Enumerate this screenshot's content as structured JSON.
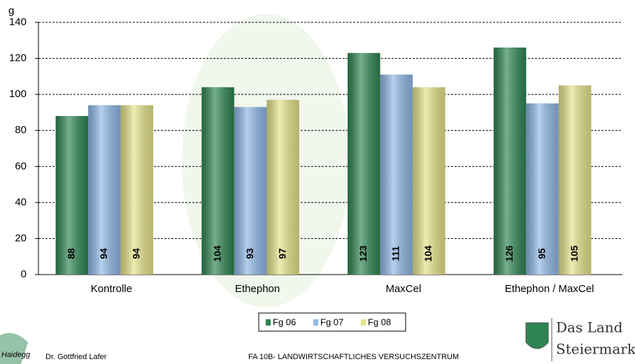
{
  "chart_data": {
    "type": "bar",
    "y_label": "g",
    "categories": [
      "Kontrolle",
      "Ethephon",
      "MaxCel",
      "Ethephon / MaxCel"
    ],
    "series": [
      {
        "name": "Fg 06",
        "color": "#2e8552",
        "values": [
          88,
          104,
          123,
          126
        ]
      },
      {
        "name": "Fg 07",
        "color": "#8fb8e6",
        "values": [
          94,
          93,
          111,
          95
        ]
      },
      {
        "name": "Fg 08",
        "color": "#e6e38a",
        "values": [
          94,
          97,
          104,
          105
        ]
      }
    ],
    "ylim": [
      0,
      140
    ],
    "yticks": [
      0,
      20,
      40,
      60,
      80,
      100,
      120,
      140
    ],
    "grid": true,
    "legend": "bottom"
  },
  "footer": {
    "author": "Dr. Gottfried Lafer",
    "institution": "FA 10B- LANDWIRTSCHAFTLICHES VERSUCHSZENTRUM",
    "left_logo": "Haidegg",
    "right_logo_line1": "Das Land",
    "right_logo_line2": "Steiermark"
  }
}
